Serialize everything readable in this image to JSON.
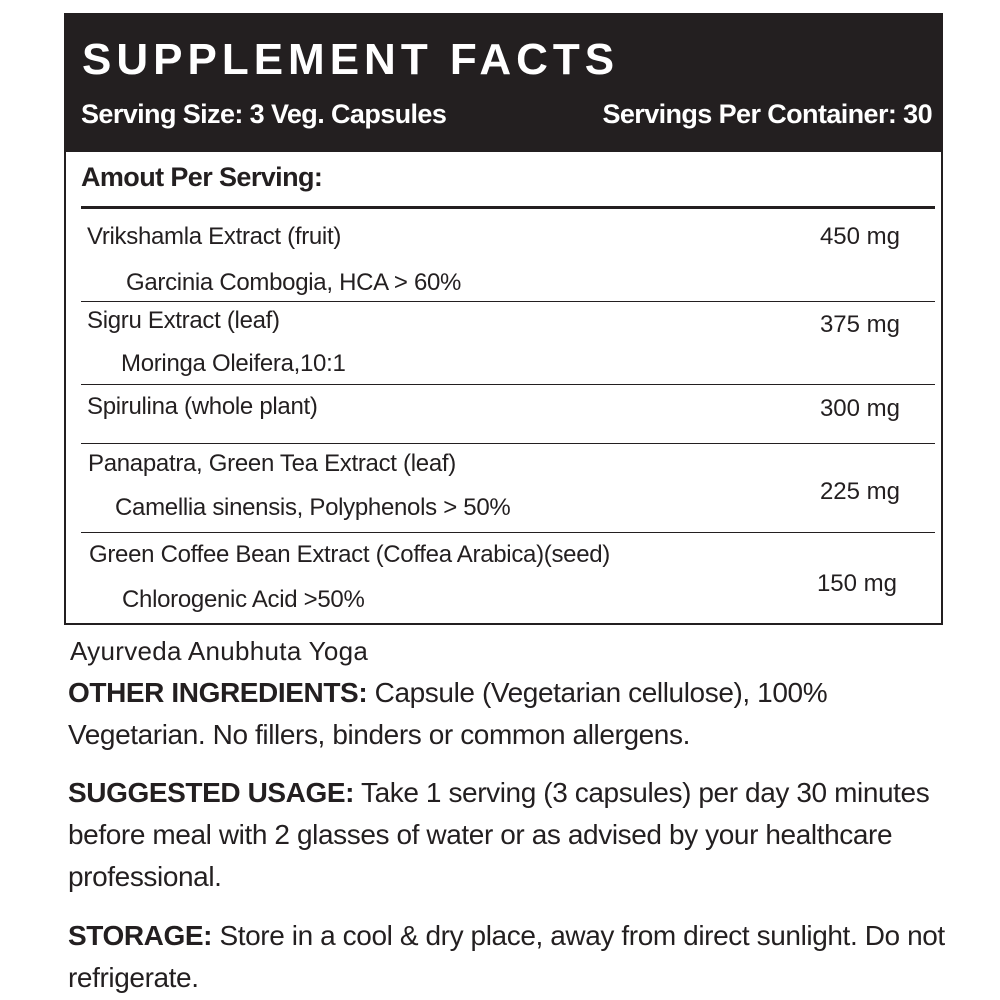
{
  "panel": {
    "title": "SUPPLEMENT FACTS",
    "serving_size": "Serving Size: 3 Veg. Capsules",
    "servings_per_container": "Servings Per Container: 30",
    "amount_heading": "Amout Per Serving:"
  },
  "ingredients": [
    {
      "name": "Vrikshamla Extract (fruit)",
      "sub": "Garcinia Combogia, HCA > 60%",
      "amount": "450 mg"
    },
    {
      "name": "Sigru Extract (leaf)",
      "sub": "Moringa Oleifera,10:1",
      "amount": "375 mg"
    },
    {
      "name": "Spirulina (whole plant)",
      "sub": "",
      "amount": "300 mg"
    },
    {
      "name": "Panapatra, Green Tea Extract (leaf)",
      "sub": "Camellia sinensis, Polyphenols > 50%",
      "amount": "225 mg"
    },
    {
      "name": "Green Coffee Bean Extract (Coffea Arabica)(seed)",
      "sub": "Chlorogenic Acid >50%",
      "amount": "150 mg"
    }
  ],
  "tagline": "Ayurveda Anubhuta Yoga",
  "other_ingredients": {
    "label": "OTHER INGREDIENTS:",
    "text": " Capsule (Vegetarian cellulose), 100% Vegetarian. No fillers, binders or common allergens."
  },
  "suggested_usage": {
    "label": "SUGGESTED USAGE:",
    "text": " Take 1 serving (3 capsules) per day 30 minutes before meal with 2 glasses of water or as advised by your healthcare professional."
  },
  "storage": {
    "label": "STORAGE:",
    "text": " Store in a cool & dry place, away from direct sunlight. Do not refrigerate."
  },
  "colors": {
    "header_background": "#231f20",
    "header_text": "#ffffff",
    "body_text": "#231f20"
  }
}
